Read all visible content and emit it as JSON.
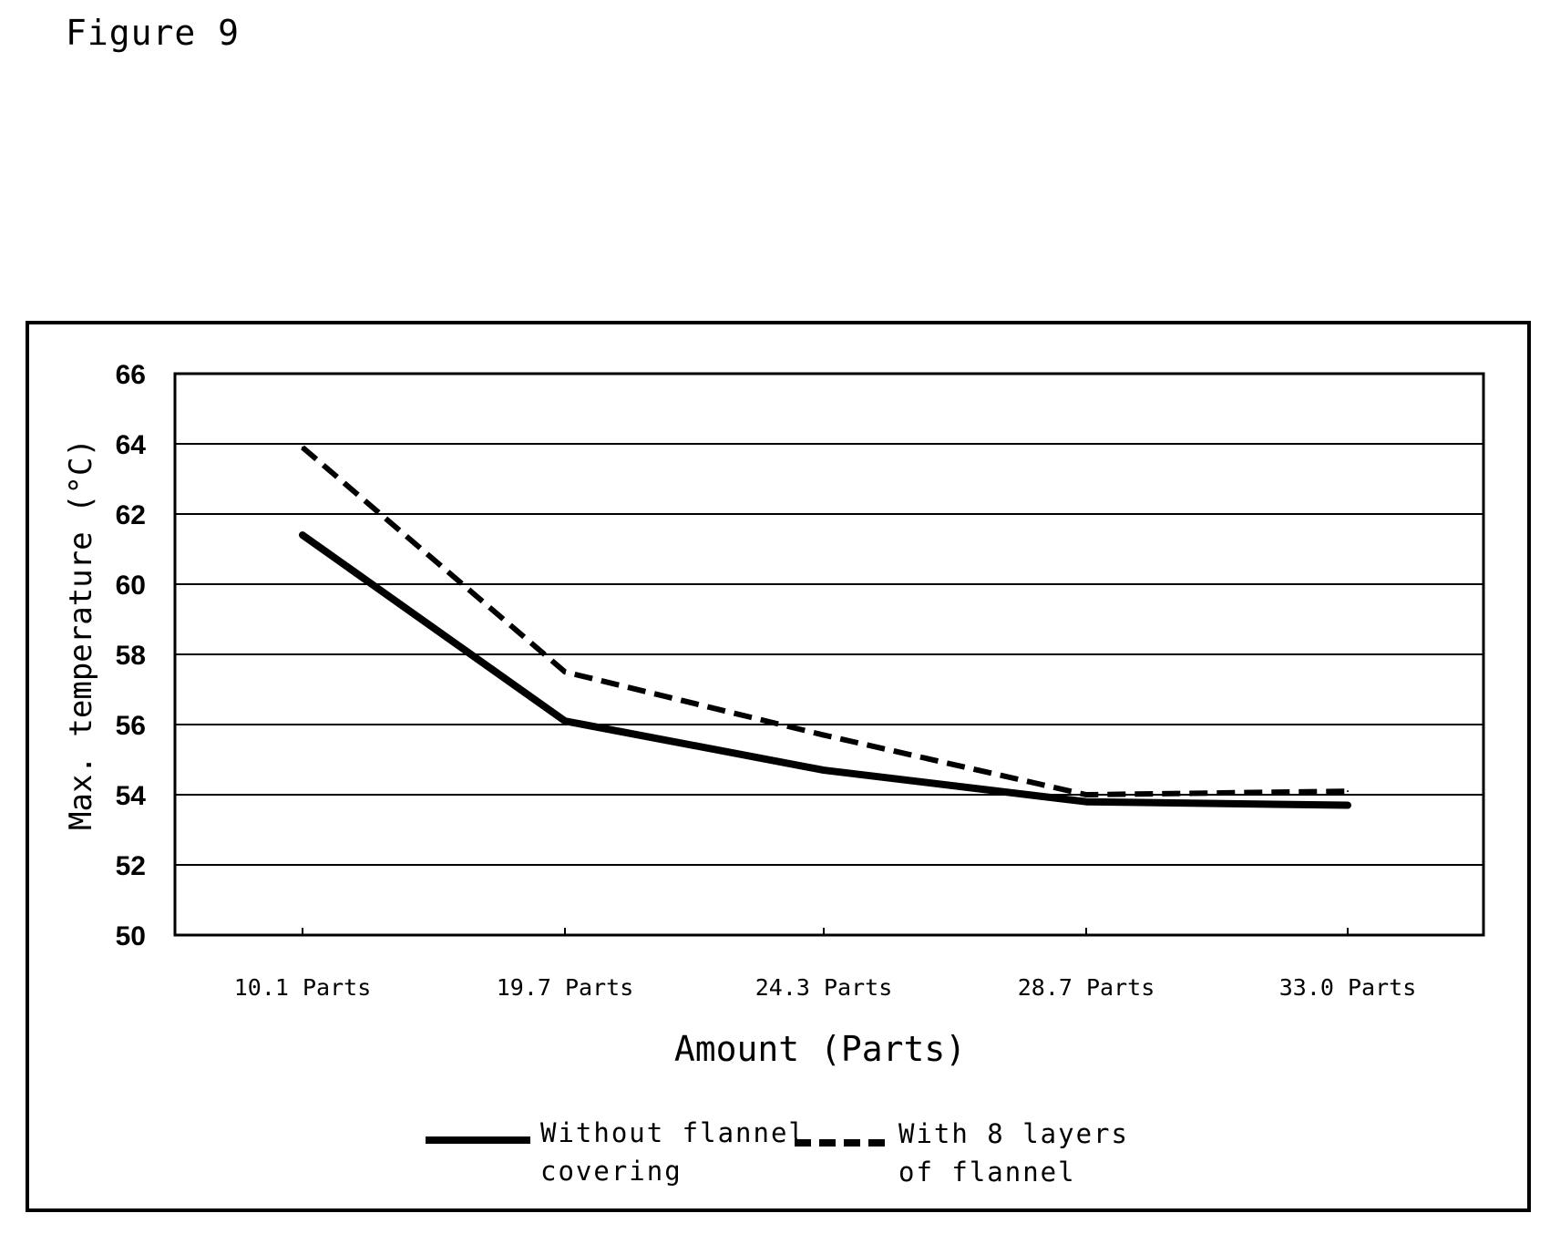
{
  "figure_label": "Figure 9",
  "chart_data": {
    "type": "line",
    "categories": [
      "10.1 Parts",
      "19.7 Parts",
      "24.3 Parts",
      "28.7 Parts",
      "33.0 Parts"
    ],
    "series": [
      {
        "name_lines": [
          "Without flannel",
          "covering"
        ],
        "style": "solid",
        "color": "#000000",
        "values": [
          61.4,
          56.1,
          54.7,
          53.8,
          53.7
        ]
      },
      {
        "name_lines": [
          "With 8 layers",
          "of flannel"
        ],
        "style": "dashed",
        "color": "#000000",
        "values": [
          63.9,
          57.5,
          55.7,
          54.0,
          54.1
        ]
      }
    ],
    "xlabel": "Amount (Parts)",
    "ylabel": "Max. temperature (°C)",
    "ylim": [
      50,
      66
    ],
    "yticks": [
      50,
      52,
      54,
      56,
      58,
      60,
      62,
      64,
      66
    ],
    "grid": true,
    "legend_position": "bottom"
  }
}
